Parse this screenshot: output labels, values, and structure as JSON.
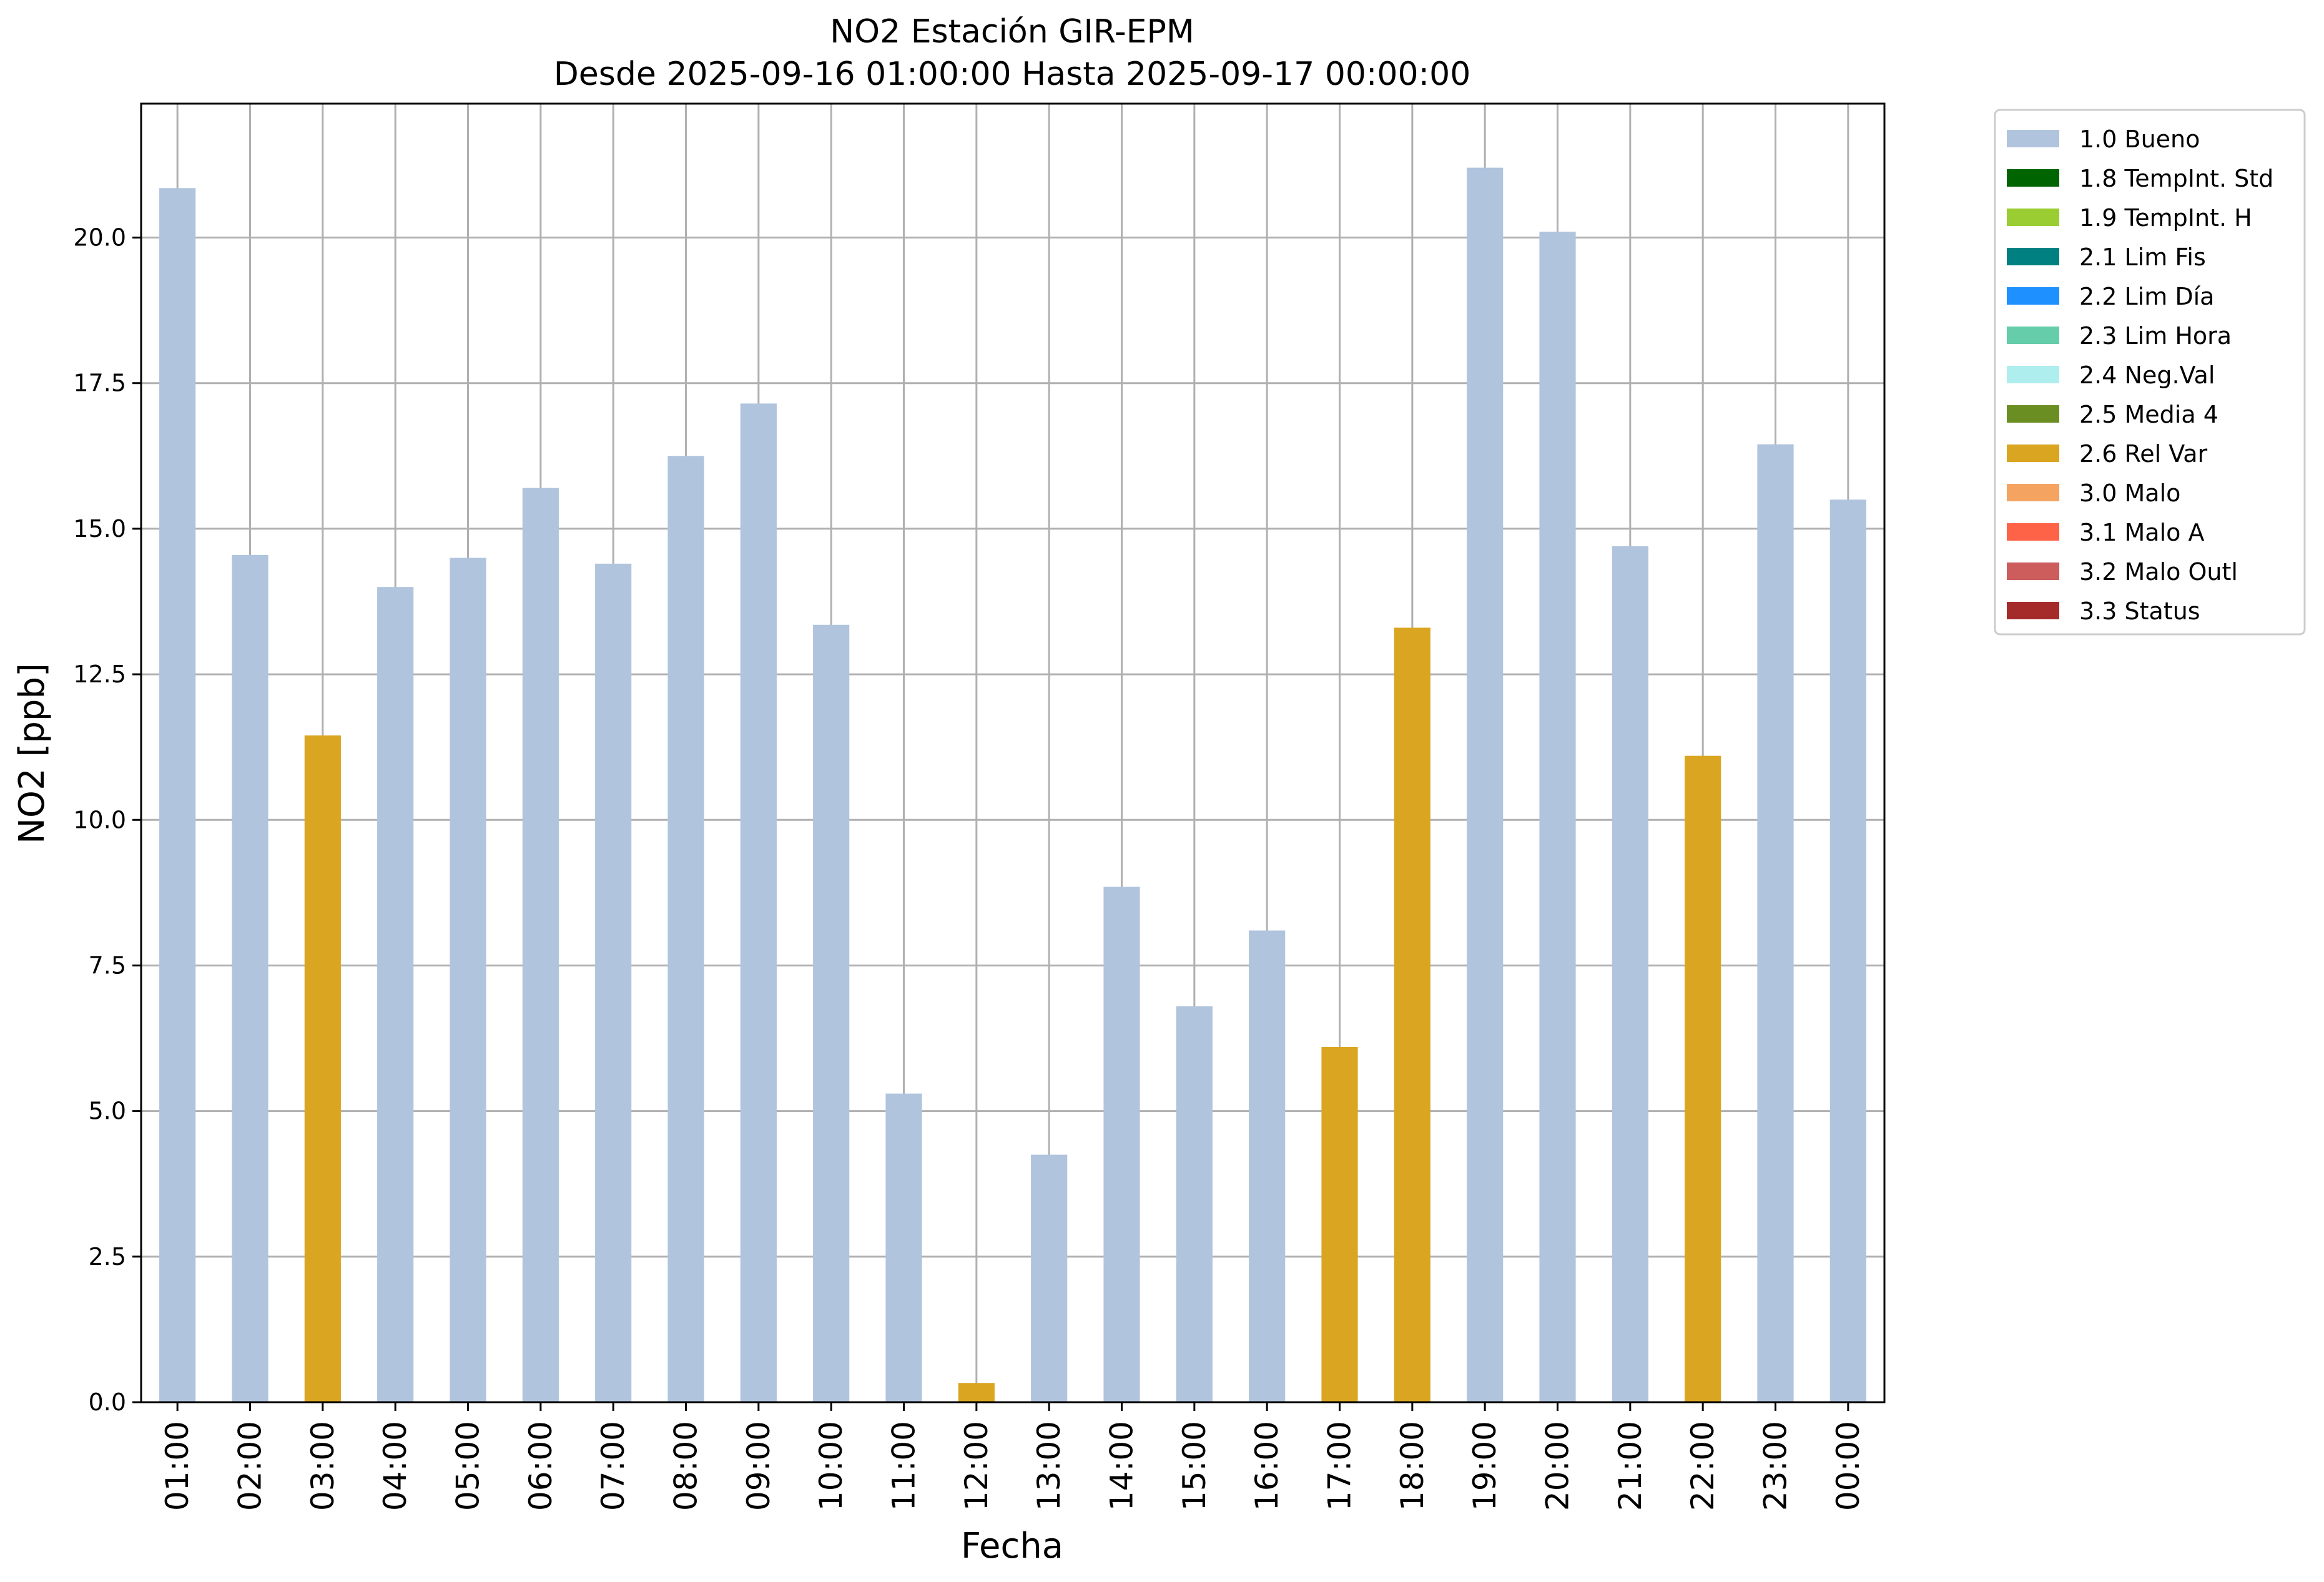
{
  "chart_data": {
    "type": "bar",
    "title": "NO2 Estación GIR-EPM",
    "subtitle": "Desde 2025-09-16 01:00:00 Hasta 2025-09-17 00:00:00",
    "xlabel": "Fecha",
    "ylabel": "NO2 [ppb]",
    "ylim": [
      0,
      22.3
    ],
    "yticks": [
      "0.0",
      "2.5",
      "5.0",
      "7.5",
      "10.0",
      "12.5",
      "15.0",
      "17.5",
      "20.0"
    ],
    "grid": true,
    "legend_position": "outside-top-right",
    "categories": [
      "01:00",
      "02:00",
      "03:00",
      "04:00",
      "05:00",
      "06:00",
      "07:00",
      "08:00",
      "09:00",
      "10:00",
      "11:00",
      "12:00",
      "13:00",
      "14:00",
      "15:00",
      "16:00",
      "17:00",
      "18:00",
      "19:00",
      "20:00",
      "21:00",
      "22:00",
      "23:00",
      "00:00"
    ],
    "values": [
      20.85,
      14.55,
      11.45,
      14.0,
      14.5,
      15.7,
      14.4,
      16.25,
      17.15,
      13.35,
      5.3,
      0.33,
      4.25,
      8.85,
      6.8,
      8.1,
      6.1,
      13.3,
      21.2,
      20.1,
      14.7,
      11.1,
      16.45,
      15.5
    ],
    "flags": [
      "1.0 Bueno",
      "1.0 Bueno",
      "2.6 Rel Var",
      "1.0 Bueno",
      "1.0 Bueno",
      "1.0 Bueno",
      "1.0 Bueno",
      "1.0 Bueno",
      "1.0 Bueno",
      "1.0 Bueno",
      "1.0 Bueno",
      "2.6 Rel Var",
      "1.0 Bueno",
      "1.0 Bueno",
      "1.0 Bueno",
      "1.0 Bueno",
      "2.6 Rel Var",
      "2.6 Rel Var",
      "1.0 Bueno",
      "1.0 Bueno",
      "1.0 Bueno",
      "2.6 Rel Var",
      "1.0 Bueno",
      "1.0 Bueno"
    ],
    "legend": [
      {
        "label": "1.0 Bueno",
        "color": "#b0c4de"
      },
      {
        "label": "1.8 TempInt. Std",
        "color": "#006400"
      },
      {
        "label": "1.9 TempInt. H",
        "color": "#9acd32"
      },
      {
        "label": "2.1 Lim Fis",
        "color": "#008080"
      },
      {
        "label": "2.2 Lim Día",
        "color": "#1e90ff"
      },
      {
        "label": "2.3 Lim Hora",
        "color": "#66cdaa"
      },
      {
        "label": "2.4 Neg.Val",
        "color": "#afeeee"
      },
      {
        "label": "2.5 Media 4",
        "color": "#6b8e23"
      },
      {
        "label": "2.6 Rel Var",
        "color": "#daa520"
      },
      {
        "label": "3.0 Malo",
        "color": "#f4a460"
      },
      {
        "label": "3.1 Malo A",
        "color": "#ff6347"
      },
      {
        "label": "3.2 Malo Outl",
        "color": "#cd5c5c"
      },
      {
        "label": "3.3 Status",
        "color": "#a52a2a"
      }
    ]
  }
}
